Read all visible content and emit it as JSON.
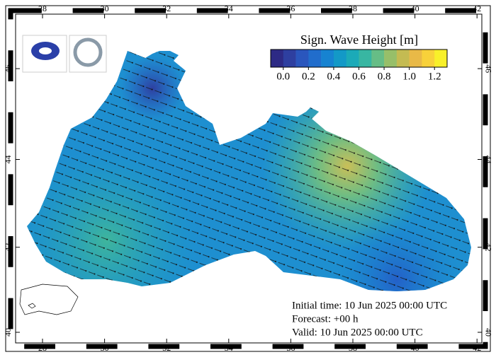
{
  "map": {
    "title": "Sign. Wave Height [m]",
    "colorbar": {
      "colors": [
        "#2d2a85",
        "#2e3fa0",
        "#2a56bd",
        "#216dcc",
        "#1783d1",
        "#1399c7",
        "#1baab8",
        "#38b6a2",
        "#66bd86",
        "#97bf69",
        "#c4bb52",
        "#e9b947",
        "#f8d13a",
        "#f8f02a"
      ],
      "range": [
        -0.1,
        1.3
      ],
      "ticks": [
        {
          "value": 0,
          "label": "0.0"
        },
        0.2,
        0.4,
        0.6,
        0.8,
        {
          "value": 1,
          "label": "1.0"
        },
        1.2
      ]
    },
    "lon_ticks": [
      28,
      30,
      32,
      34,
      36,
      38,
      40,
      42
    ],
    "lat_ticks": [
      40,
      42,
      44,
      46
    ],
    "info": [
      "Initial time: 10 Jun 2025 00:00 UTC",
      "Forecast: +00 h",
      "Valid: 10 Jun 2025 00:00 UTC"
    ]
  }
}
